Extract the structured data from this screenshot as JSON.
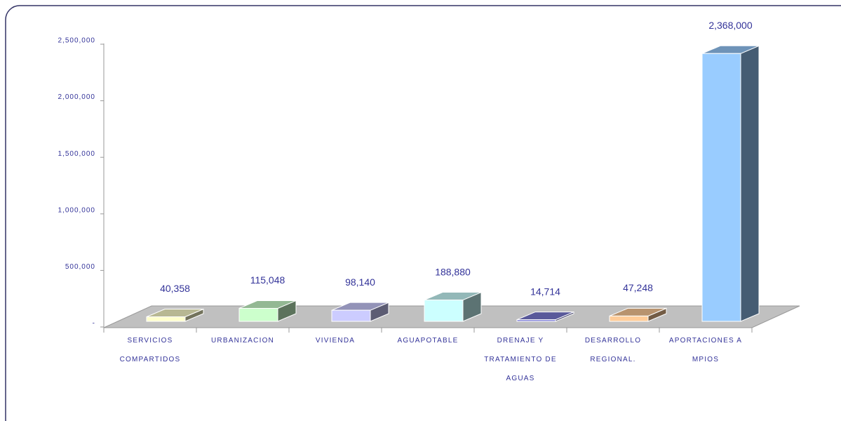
{
  "chart_data": {
    "type": "bar3d",
    "categories": [
      "SERVICIOS COMPARTIDOS",
      "URBANIZACION",
      "VIVIENDA",
      "AGUAPOTABLE",
      "DRENAJE Y TRATAMIENTO DE AGUAS",
      "DESARROLLO REGIONAL.",
      "APORTACIONES A MPIOS"
    ],
    "values": [
      40358,
      115048,
      98140,
      188880,
      14714,
      47248,
      2368000
    ],
    "value_labels": [
      "40,358",
      "115,048",
      "98,140",
      "188,880",
      "14,714",
      "47,248",
      "2,368,000"
    ],
    "colors": [
      "#ffffcc",
      "#ccffcc",
      "#ccccff",
      "#ccffff",
      "#7b7bd6",
      "#ffcc99",
      "#99ccff"
    ],
    "ylim": [
      0,
      2500000
    ],
    "yticks": [
      {
        "value": 0,
        "label": "-"
      },
      {
        "value": 500000,
        "label": "500,000"
      },
      {
        "value": 1000000,
        "label": "1,000,000"
      },
      {
        "value": 1500000,
        "label": "1,500,000"
      },
      {
        "value": 2000000,
        "label": "2,000,000"
      },
      {
        "value": 2500000,
        "label": "2,500,000"
      }
    ]
  }
}
